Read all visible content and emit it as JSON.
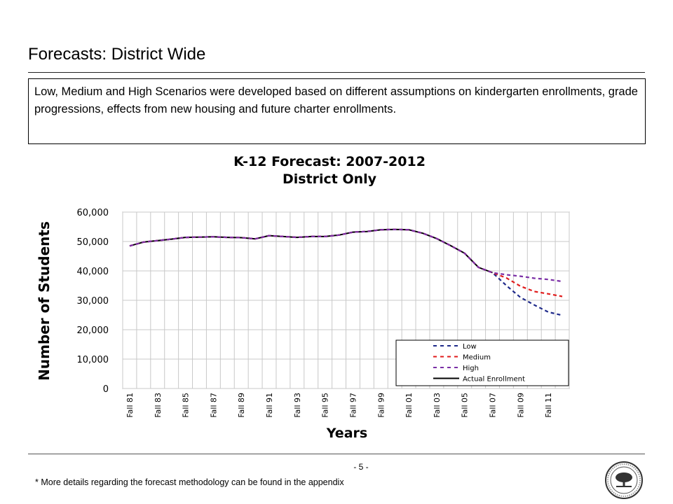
{
  "slide": {
    "title": "Forecasts: District Wide",
    "description": "Low, Medium and High Scenarios were developed based on different assumptions on kindergarten enrollments, grade progressions, effects from new housing and future charter enrollments.",
    "page_number": "- 5 -",
    "footnote": "* More details regarding the forecast methodology can be found in the appendix"
  },
  "chart_data": {
    "type": "line",
    "title": "K-12 Forecast: 2007-2012",
    "subtitle": "District Only",
    "xlabel": "Years",
    "ylabel": "Number of Students",
    "ylim": [
      0,
      60000
    ],
    "yticks": [
      "0",
      "10,000",
      "20,000",
      "30,000",
      "40,000",
      "50,000",
      "60,000"
    ],
    "grid": true,
    "legend_position": "bottom-right",
    "x": [
      "Fall 81",
      "Fall 82",
      "Fall 83",
      "Fall 84",
      "Fall 85",
      "Fall 86",
      "Fall 87",
      "Fall 88",
      "Fall 89",
      "Fall 90",
      "Fall 91",
      "Fall 92",
      "Fall 93",
      "Fall 94",
      "Fall 95",
      "Fall 96",
      "Fall 97",
      "Fall 98",
      "Fall 99",
      "Fall 00",
      "Fall 01",
      "Fall 02",
      "Fall 03",
      "Fall 04",
      "Fall 05",
      "Fall 06",
      "Fall 07",
      "Fall 08",
      "Fall 09",
      "Fall 10",
      "Fall 11",
      "Fall 12"
    ],
    "x_tick_labels": [
      "Fall 81",
      "Fall 83",
      "Fall 85",
      "Fall 87",
      "Fall 89",
      "Fall 91",
      "Fall 93",
      "Fall 95",
      "Fall 97",
      "Fall 99",
      "Fall 01",
      "Fall 03",
      "Fall 05",
      "Fall 07",
      "Fall 09",
      "Fall 11"
    ],
    "series": [
      {
        "name": "Low",
        "color": "#1f2a8a",
        "dash": true,
        "values": [
          48500,
          49800,
          50300,
          50800,
          51400,
          51500,
          51600,
          51400,
          51300,
          50900,
          52000,
          51700,
          51400,
          51700,
          51700,
          52200,
          53200,
          53400,
          54000,
          54100,
          54000,
          52800,
          51000,
          48600,
          46000,
          41200,
          39400,
          35000,
          31000,
          28400,
          26000,
          24900
        ]
      },
      {
        "name": "Medium",
        "color": "#e01b1b",
        "dash": true,
        "values": [
          48500,
          49800,
          50300,
          50800,
          51400,
          51500,
          51600,
          51400,
          51300,
          50900,
          52000,
          51700,
          51400,
          51700,
          51700,
          52200,
          53200,
          53400,
          54000,
          54100,
          54000,
          52800,
          51000,
          48600,
          46000,
          41200,
          39400,
          37600,
          34800,
          33000,
          32200,
          31300
        ]
      },
      {
        "name": "High",
        "color": "#7b2fa6",
        "dash": true,
        "values": [
          48500,
          49800,
          50300,
          50800,
          51400,
          51500,
          51600,
          51400,
          51300,
          50900,
          52000,
          51700,
          51400,
          51700,
          51700,
          52200,
          53200,
          53400,
          54000,
          54100,
          54000,
          52800,
          51000,
          48600,
          46000,
          41200,
          39400,
          38700,
          38200,
          37500,
          37100,
          36400
        ]
      },
      {
        "name": "Actual Enrollment",
        "color": "#000000",
        "dash": false,
        "values": [
          48500,
          49800,
          50300,
          50800,
          51400,
          51500,
          51600,
          51400,
          51300,
          50900,
          52000,
          51700,
          51400,
          51700,
          51700,
          52200,
          53200,
          53400,
          54000,
          54100,
          54000,
          52800,
          51000,
          48600,
          46000,
          41200,
          39400,
          null,
          null,
          null,
          null,
          null
        ]
      }
    ]
  }
}
